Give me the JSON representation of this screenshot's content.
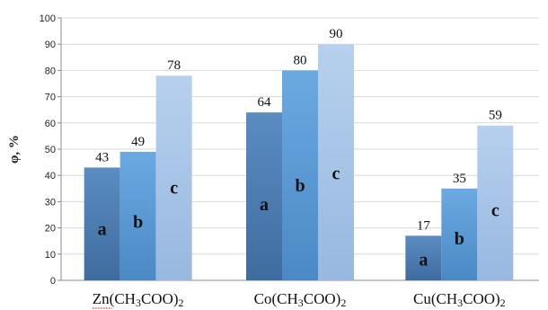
{
  "chart_data": {
    "type": "bar",
    "title": "",
    "xlabel": "",
    "ylabel": "φ, %",
    "ylim": [
      0,
      100
    ],
    "yticks": [
      0,
      10,
      20,
      30,
      40,
      50,
      60,
      70,
      80,
      90,
      100
    ],
    "grid": true,
    "legend": "none",
    "categories": [
      {
        "parts": [
          {
            "t": "Zn(CH"
          },
          {
            "t": "3",
            "sub": true
          },
          {
            "t": "COO)"
          },
          {
            "t": "2",
            "sub": true
          }
        ],
        "spell_underline": true
      },
      {
        "parts": [
          {
            "t": "Co(CH"
          },
          {
            "t": "3",
            "sub": true
          },
          {
            "t": "COO)"
          },
          {
            "t": "2",
            "sub": true
          }
        ],
        "spell_underline": false
      },
      {
        "parts": [
          {
            "t": "Cu(CH"
          },
          {
            "t": "3",
            "sub": true
          },
          {
            "t": "COO)"
          },
          {
            "t": "2",
            "sub": true
          }
        ],
        "spell_underline": false
      }
    ],
    "bar_labels": [
      "a",
      "b",
      "c"
    ],
    "series": [
      {
        "values": [
          43,
          64,
          17
        ],
        "color": "#4f7fb3"
      },
      {
        "values": [
          49,
          80,
          35
        ],
        "color": "#5b9bd5"
      },
      {
        "values": [
          78,
          90,
          59
        ],
        "color": "#a8c4e6"
      }
    ]
  }
}
